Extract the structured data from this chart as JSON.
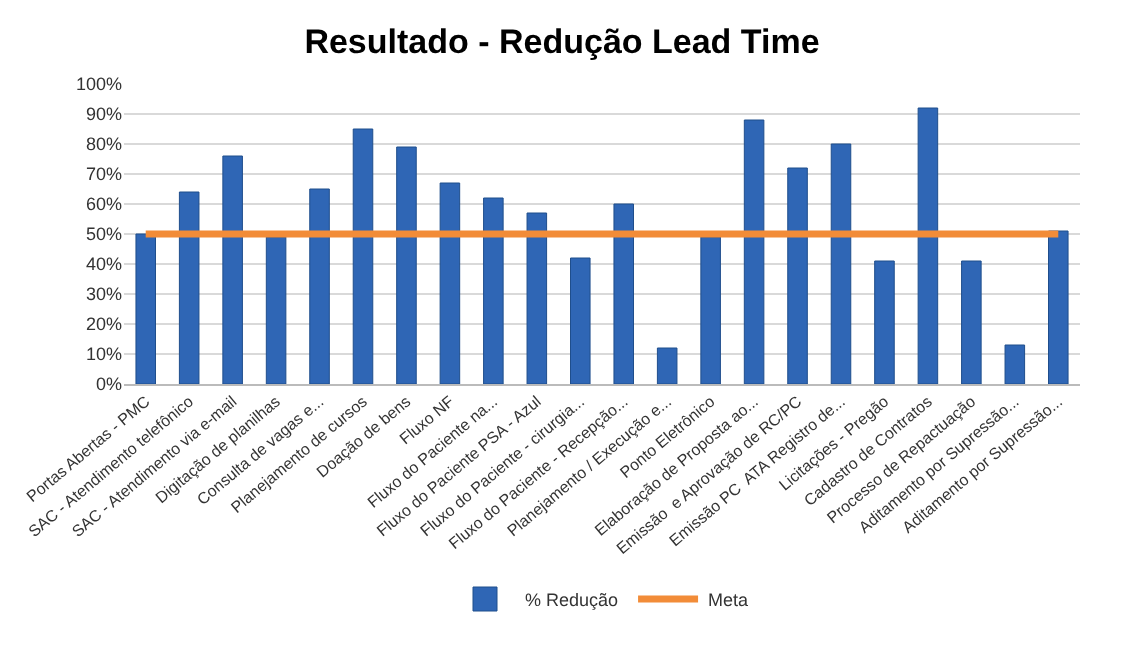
{
  "chart_data": {
    "type": "bar",
    "title": "Resultado - Redução Lead Time",
    "categories": [
      "Portas Abertas - PMC",
      "SAC - Atendimento telefônico",
      "SAC - Atendimento via e-mail",
      "Digitação de planilhas",
      "Consulta de vagas e...",
      "Planejamento de cursos",
      "Doação de bens",
      "Fluxo NF",
      "Fluxo do Paciente na...",
      "Fluxo do Paciente PSA - Azul",
      "Fluxo do Paciente - cirurgia...",
      "Fluxo do Paciente - Recepção...",
      "Planejamento / Execução e...",
      "Ponto Eletrônico",
      "Elaboração de Proposta ao...",
      "Emissão  e Aprovação de RC/PC",
      "Emissão PC  ATA Registro de...",
      "Licitações - Pregão",
      "Cadastro de Contratos",
      "Processo de Repactuação",
      "Aditamento por Supressão...",
      "Aditamento por Supressão..."
    ],
    "series": [
      {
        "name": "% Redução",
        "color": "#2f66b5",
        "values": [
          50,
          64,
          76,
          49,
          65,
          85,
          79,
          67,
          62,
          57,
          42,
          60,
          12,
          49,
          88,
          72,
          80,
          41,
          92,
          41,
          13,
          51
        ]
      },
      {
        "name": "Meta",
        "type": "line",
        "color": "#f28c38",
        "values": [
          50,
          50,
          50,
          50,
          50,
          50,
          50,
          50,
          50,
          50,
          50,
          50,
          50,
          50,
          50,
          50,
          50,
          50,
          50,
          50,
          50,
          50
        ]
      }
    ],
    "ylim": [
      0,
      100
    ],
    "yticks": [
      {
        "value": 0,
        "label": "0%"
      },
      {
        "value": 10,
        "label": "10%"
      },
      {
        "value": 20,
        "label": "20%"
      },
      {
        "value": 30,
        "label": "30%"
      },
      {
        "value": 40,
        "label": "40%"
      },
      {
        "value": 50,
        "label": "50%"
      },
      {
        "value": 60,
        "label": "60%"
      },
      {
        "value": 70,
        "label": "70%"
      },
      {
        "value": 80,
        "label": "80%"
      },
      {
        "value": 90,
        "label": "90%"
      },
      {
        "value": 100,
        "label": "100%"
      }
    ],
    "grid": "y",
    "legend": "bottom",
    "marker": "none",
    "line_style": "solid"
  }
}
